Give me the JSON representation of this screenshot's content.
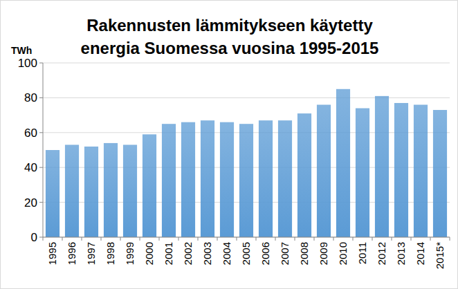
{
  "chart_data": {
    "type": "bar",
    "title": "Rakennusten lämmitykseen käytetty energia Suomessa vuosina 1995-2015",
    "y_label": "TWh",
    "categories": [
      "1995",
      "1996",
      "1997",
      "1998",
      "1999",
      "2000",
      "2001",
      "2002",
      "2003",
      "2004",
      "2005",
      "2006",
      "2007",
      "2008",
      "2009",
      "2010",
      "2011",
      "2012",
      "2013",
      "2014",
      "2015*"
    ],
    "values": [
      50,
      53,
      52,
      54,
      53,
      59,
      65,
      66,
      67,
      66,
      65,
      67,
      67,
      71,
      76,
      85,
      74,
      81,
      77,
      76,
      73
    ],
    "color": "#5b9bd5",
    "ylim": [
      0,
      100
    ],
    "yticks": [
      0,
      20,
      40,
      60,
      80,
      100
    ],
    "grid": true
  }
}
